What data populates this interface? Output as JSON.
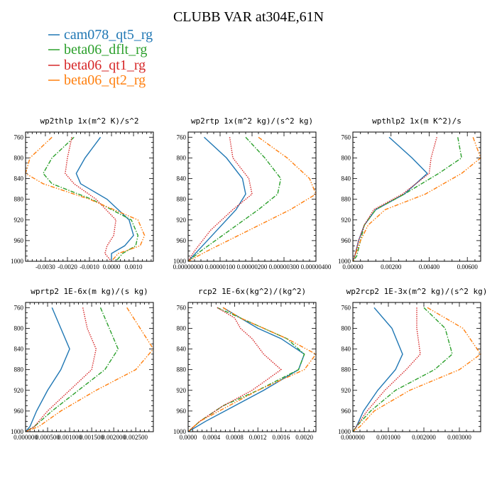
{
  "figure": {
    "title": "CLUBB VAR at304E,61N",
    "legend": [
      {
        "name": "cam078_qt5_rg",
        "color": "#1f77b4",
        "dash": "solid"
      },
      {
        "name": "beta06_dflt_rg",
        "color": "#2ca02c",
        "dash": "dashdot"
      },
      {
        "name": "beta06_qt1_rg",
        "color": "#d62728",
        "dash": "dotted"
      },
      {
        "name": "beta06_qt2_rg",
        "color": "#ff7f0e",
        "dash": "dashdotdot"
      }
    ]
  },
  "chart_data": [
    {
      "type": "line",
      "title": "wp2thlp  1x(m^2 K)/s^2",
      "xlim": [
        -0.0039,
        0.0019
      ],
      "ylim": [
        1000,
        750
      ],
      "xticks": [
        -0.003,
        -0.002,
        -0.001,
        0.0,
        0.001
      ],
      "xtick_labels": [
        "-0.0030",
        "-0.0020",
        "-0.0010",
        "0.0000",
        "0.0010"
      ],
      "yticks": [
        760,
        800,
        840,
        880,
        920,
        960,
        1000
      ],
      "y": [
        760,
        800,
        830,
        850,
        880,
        920,
        950,
        970,
        985,
        1000
      ],
      "series": [
        {
          "values": [
            -0.0005,
            -0.0012,
            -0.0016,
            -0.0014,
            -0.0002,
            0.0008,
            0.001,
            0.0006,
            0.0,
            0.0
          ]
        },
        {
          "values": [
            -0.0017,
            -0.0027,
            -0.0031,
            -0.0027,
            -0.0009,
            0.0009,
            0.0012,
            0.0011,
            0.0005,
            0.0002
          ]
        },
        {
          "values": [
            -0.0018,
            -0.002,
            -0.0021,
            -0.0017,
            -0.0007,
            0.0002,
            0.0001,
            -0.0002,
            -0.0003,
            0.0
          ]
        },
        {
          "values": [
            -0.0027,
            -0.0037,
            -0.0039,
            -0.0031,
            -0.001,
            0.0012,
            0.0015,
            0.0013,
            0.0003,
            0.0
          ]
        }
      ]
    },
    {
      "type": "line",
      "title": "wp2rtp  1x(m^2 kg)/(s^2 kg)",
      "xlim": [
        0.0,
        4e-06
      ],
      "ylim": [
        1000,
        750
      ],
      "xticks": [
        0.0,
        1e-06,
        2e-06,
        3e-06,
        4e-06
      ],
      "xtick_labels": [
        "0.00000000",
        "0.00000100",
        "0.00000200",
        "0.00000300",
        "0.00000400"
      ],
      "yticks": [
        760,
        800,
        840,
        880,
        920,
        960,
        1000
      ],
      "y": [
        760,
        800,
        840,
        870,
        900,
        940,
        980,
        1000
      ],
      "series": [
        {
          "values": [
            5e-07,
            1.2e-06,
            1.7e-06,
            1.8e-06,
            1.5e-06,
            9e-07,
            3e-07,
            0.0
          ]
        },
        {
          "values": [
            1.8e-06,
            2.4e-06,
            2.9e-06,
            2.8e-06,
            2.2e-06,
            1.3e-06,
            4e-07,
            0.0
          ]
        },
        {
          "values": [
            1.3e-06,
            1.4e-06,
            1.9e-06,
            2e-06,
            1.4e-06,
            7e-07,
            2e-07,
            0.0
          ]
        },
        {
          "values": [
            2.2e-06,
            3.1e-06,
            3.8e-06,
            4e-06,
            3.2e-06,
            1.9e-06,
            6e-07,
            0.0
          ]
        }
      ]
    },
    {
      "type": "line",
      "title": "wpthlp2  1x(m K^2)/s",
      "xlim": [
        0.0,
        0.0067
      ],
      "ylim": [
        1000,
        750
      ],
      "xticks": [
        0.0,
        0.002,
        0.004,
        0.006
      ],
      "xtick_labels": [
        "0.00000",
        "0.00200",
        "0.00400",
        "0.00600"
      ],
      "yticks": [
        760,
        800,
        840,
        880,
        920,
        960,
        1000
      ],
      "y": [
        760,
        800,
        830,
        870,
        900,
        930,
        960,
        990,
        1000
      ],
      "series": [
        {
          "values": [
            0.0019,
            0.0031,
            0.0039,
            0.0027,
            0.0012,
            0.0006,
            0.0003,
            0.0001,
            0.0
          ]
        },
        {
          "values": [
            0.0055,
            0.0057,
            0.0045,
            0.0027,
            0.0012,
            0.0006,
            0.0004,
            0.0002,
            0.0
          ]
        },
        {
          "values": [
            0.0044,
            0.0041,
            0.004,
            0.0026,
            0.0011,
            0.0006,
            0.0003,
            0.0001,
            0.0
          ]
        },
        {
          "values": [
            0.0063,
            0.0067,
            0.0057,
            0.0038,
            0.0017,
            0.0008,
            0.0004,
            0.0001,
            0.0
          ]
        }
      ]
    },
    {
      "type": "line",
      "title": "wprtp2  1E-6x(m kg)/(s kg)",
      "xlim": [
        0.0,
        0.0029
      ],
      "ylim": [
        1000,
        750
      ],
      "xticks": [
        0.0,
        0.0005,
        0.001,
        0.0015,
        0.002,
        0.0025
      ],
      "xtick_labels": [
        "0.000000",
        "0.000500",
        "0.001000",
        "0.001500",
        "0.002000",
        "0.002500"
      ],
      "yticks": [
        760,
        800,
        840,
        880,
        920,
        960,
        1000
      ],
      "y": [
        760,
        800,
        840,
        880,
        920,
        960,
        990,
        1000
      ],
      "series": [
        {
          "values": [
            0.0006,
            0.0008,
            0.001,
            0.0008,
            0.0005,
            0.00025,
            0.0001,
            0.0
          ]
        },
        {
          "values": [
            0.0017,
            0.0019,
            0.0021,
            0.0018,
            0.0012,
            0.0006,
            0.0002,
            0.0
          ]
        },
        {
          "values": [
            0.0013,
            0.0014,
            0.0016,
            0.0015,
            0.001,
            0.0005,
            0.0002,
            0.0
          ]
        },
        {
          "values": [
            0.0023,
            0.0026,
            0.0029,
            0.0025,
            0.0016,
            0.0008,
            0.0003,
            0.0
          ]
        }
      ]
    },
    {
      "type": "line",
      "title": "rcp2  1E-6x(kg^2)/(kg^2)",
      "xlim": [
        0.0,
        0.0022
      ],
      "ylim": [
        1000,
        750
      ],
      "xticks": [
        0.0,
        0.0004,
        0.0008,
        0.0012,
        0.0016,
        0.002
      ],
      "xtick_labels": [
        "0.0000",
        "0.0004",
        "0.0008",
        "0.0012",
        "0.0016",
        "0.0020"
      ],
      "yticks": [
        760,
        800,
        840,
        880,
        920,
        960,
        1000
      ],
      "y": [
        760,
        780,
        800,
        820,
        850,
        880,
        920,
        950,
        980,
        1000
      ],
      "series": [
        {
          "values": [
            0.0006,
            0.0009,
            0.0012,
            0.0016,
            0.002,
            0.0019,
            0.0013,
            0.0008,
            0.0003,
            0.0
          ]
        },
        {
          "values": [
            0.0005,
            0.0009,
            0.0013,
            0.0017,
            0.002,
            0.0019,
            0.0012,
            0.0006,
            0.0002,
            0.0
          ]
        },
        {
          "values": [
            0.0005,
            0.0008,
            0.0009,
            0.0011,
            0.0013,
            0.0016,
            0.0011,
            0.0006,
            0.0002,
            0.0
          ]
        },
        {
          "values": [
            0.0006,
            0.0009,
            0.0013,
            0.0017,
            0.0022,
            0.002,
            0.0012,
            0.0007,
            0.0002,
            0.0
          ]
        }
      ]
    },
    {
      "type": "line",
      "title": "wp2rcp2  1E-3x(m^2 kg)/(s^2 kg)",
      "xlim": [
        0.0,
        0.0036
      ],
      "ylim": [
        1000,
        750
      ],
      "xticks": [
        0.0,
        0.001,
        0.002,
        0.003
      ],
      "xtick_labels": [
        "0.000000",
        "0.001000",
        "0.002000",
        "0.003000"
      ],
      "yticks": [
        760,
        800,
        840,
        880,
        920,
        960,
        1000
      ],
      "y": [
        760,
        800,
        850,
        880,
        920,
        960,
        990,
        1000
      ],
      "series": [
        {
          "values": [
            0.0006,
            0.0011,
            0.0014,
            0.0012,
            0.0007,
            0.0003,
            0.0001,
            0.0
          ]
        },
        {
          "values": [
            0.002,
            0.0026,
            0.0028,
            0.0023,
            0.0012,
            0.0005,
            0.0001,
            0.0
          ]
        },
        {
          "values": [
            0.0018,
            0.0018,
            0.0019,
            0.0015,
            0.0009,
            0.0004,
            0.0001,
            0.0
          ]
        },
        {
          "values": [
            0.0021,
            0.0031,
            0.0036,
            0.003,
            0.0016,
            0.0006,
            0.0002,
            0.0
          ]
        }
      ]
    }
  ]
}
